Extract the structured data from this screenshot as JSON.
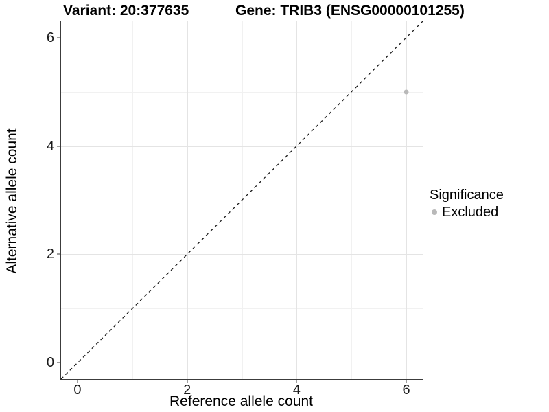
{
  "header": {
    "variant_title": "Variant: 20:377635",
    "gene_title": "Gene: TRIB3 (ENSG00000101255)"
  },
  "chart_data": {
    "type": "scatter",
    "xlabel": "Reference allele count",
    "ylabel": "Alternative allele count",
    "xlim": [
      -0.3,
      6.3
    ],
    "ylim": [
      -0.3,
      6.3
    ],
    "x_ticks": [
      0,
      2,
      4,
      6
    ],
    "y_ticks": [
      0,
      2,
      4,
      6
    ],
    "x_minor_ticks": [
      1,
      3,
      5
    ],
    "y_minor_ticks": [
      1,
      3,
      5
    ],
    "grid": "major+minor",
    "points": [
      {
        "x": 6,
        "y": 5,
        "series": "Excluded"
      }
    ],
    "reference_line": {
      "style": "dashed",
      "equation": "y = x",
      "color": "#1a1a1a"
    },
    "legend": {
      "title": "Significance",
      "position": "right",
      "entries": [
        {
          "label": "Excluded",
          "color": "#b9b9b9"
        }
      ]
    }
  }
}
